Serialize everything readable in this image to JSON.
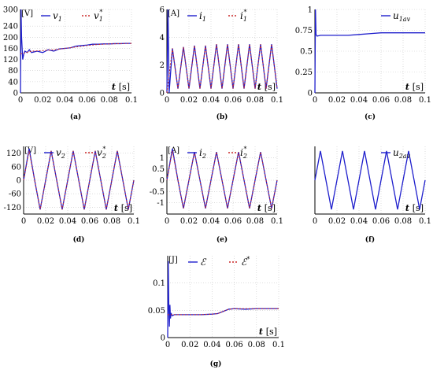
{
  "figure": {
    "colors": {
      "primary": "#1f1fcc",
      "reference": "#cc2a2a",
      "axis": "#000000",
      "grid": "#c8c8c8"
    }
  },
  "chart_data": [
    {
      "id": "a",
      "type": "line",
      "panel_label": "(a)",
      "unit_label": "[V]",
      "xlabel": "t",
      "xunit": "[s]",
      "xlim": [
        0,
        0.1
      ],
      "ylim": [
        0,
        300
      ],
      "xticks": [
        "0",
        "0.02",
        "0.04",
        "0.06",
        "0.08",
        "0.1"
      ],
      "yticks": [
        "300",
        "240",
        "200",
        "160",
        "120",
        "80",
        "40",
        "0"
      ],
      "ytick_values": [
        300,
        240,
        200,
        160,
        120,
        80,
        40,
        0
      ],
      "grid": true,
      "legend_position": "top",
      "series": [
        {
          "name": "v1",
          "label_main": "v",
          "label_sub": "1",
          "label_sup": "",
          "style": "solid",
          "x": [
            0,
            0.0005,
            0.001,
            0.002,
            0.003,
            0.004,
            0.006,
            0.008,
            0.01,
            0.015,
            0.02,
            0.025,
            0.03,
            0.035,
            0.04,
            0.045,
            0.05,
            0.055,
            0.06,
            0.065,
            0.07,
            0.075,
            0.08,
            0.085,
            0.09,
            0.095,
            0.1
          ],
          "y": [
            0,
            300,
            200,
            120,
            140,
            150,
            145,
            155,
            145,
            150,
            145,
            155,
            150,
            158,
            160,
            162,
            168,
            170,
            172,
            175,
            175,
            176,
            176,
            177,
            177,
            178,
            178
          ]
        },
        {
          "name": "v1*",
          "label_main": "v",
          "label_sub": "1",
          "label_sup": "*",
          "style": "dashed",
          "x": [
            0,
            0.01,
            0.02,
            0.03,
            0.04,
            0.05,
            0.06,
            0.07,
            0.08,
            0.09,
            0.1
          ],
          "y": [
            140,
            150,
            152,
            155,
            160,
            165,
            170,
            174,
            176,
            177,
            178
          ]
        }
      ]
    },
    {
      "id": "b",
      "type": "line",
      "panel_label": "(b)",
      "unit_label": "[A]",
      "xlabel": "t",
      "xunit": "[s]",
      "xlim": [
        0,
        0.1
      ],
      "ylim": [
        0,
        6
      ],
      "xticks": [
        "0",
        "0.02",
        "0.04",
        "0.06",
        "0.08",
        "0.1"
      ],
      "yticks": [
        "6",
        "4",
        "2",
        "0"
      ],
      "ytick_values": [
        6,
        4,
        2,
        0
      ],
      "grid": true,
      "legend_position": "top",
      "series": [
        {
          "name": "i1",
          "label_main": "i",
          "label_sub": "1",
          "label_sup": "",
          "style": "solid",
          "x": [
            0,
            0.001,
            0.002,
            0.005,
            0.01,
            0.015,
            0.02,
            0.025,
            0.03,
            0.035,
            0.04,
            0.045,
            0.05,
            0.055,
            0.06,
            0.065,
            0.07,
            0.075,
            0.08,
            0.085,
            0.09,
            0.095,
            0.1
          ],
          "y": [
            0,
            6,
            0,
            3.2,
            0.3,
            3.3,
            0.3,
            3.4,
            0.3,
            3.4,
            0.3,
            3.5,
            0.3,
            3.5,
            0.3,
            3.5,
            0.3,
            3.5,
            0.3,
            3.5,
            0.3,
            3.5,
            0.3
          ]
        },
        {
          "name": "i1*",
          "label_main": "i",
          "label_sub": "1",
          "label_sup": "*",
          "style": "dashed",
          "x": [
            0,
            0.005,
            0.01,
            0.015,
            0.02,
            0.025,
            0.03,
            0.035,
            0.04,
            0.045,
            0.05,
            0.055,
            0.06,
            0.065,
            0.07,
            0.075,
            0.08,
            0.085,
            0.09,
            0.095,
            0.1
          ],
          "y": [
            0,
            3.2,
            0.3,
            3.3,
            0.3,
            3.4,
            0.3,
            3.4,
            0.3,
            3.5,
            0.3,
            3.5,
            0.3,
            3.5,
            0.3,
            3.5,
            0.3,
            3.5,
            0.3,
            3.5,
            0.3
          ]
        }
      ]
    },
    {
      "id": "c",
      "type": "line",
      "panel_label": "(c)",
      "unit_label": "",
      "xlabel": "t",
      "xunit": "[s]",
      "xlim": [
        0,
        0.1
      ],
      "ylim": [
        0,
        1
      ],
      "xticks": [
        "0",
        "0.02",
        "0.04",
        "0.06",
        "0.08",
        "0.1"
      ],
      "yticks": [
        "1",
        "0.75",
        "0.5",
        "0.25",
        "0"
      ],
      "ytick_values": [
        1,
        0.75,
        0.5,
        0.25,
        0
      ],
      "grid": true,
      "legend_position": "top-right",
      "series": [
        {
          "name": "u1av",
          "label_main": "u",
          "label_sub": "1av",
          "label_sup": "",
          "style": "solid",
          "x": [
            0,
            0.0005,
            0.001,
            0.002,
            0.005,
            0.01,
            0.02,
            0.03,
            0.04,
            0.05,
            0.06,
            0.07,
            0.08,
            0.09,
            0.1
          ],
          "y": [
            0,
            1,
            0.7,
            0.68,
            0.69,
            0.69,
            0.69,
            0.69,
            0.7,
            0.71,
            0.72,
            0.72,
            0.72,
            0.72,
            0.72
          ]
        }
      ]
    },
    {
      "id": "d",
      "type": "line",
      "panel_label": "(d)",
      "unit_label": "[V]",
      "xlabel": "t",
      "xunit": "[s]",
      "xlim": [
        0,
        0.1
      ],
      "ylim": [
        -150,
        150
      ],
      "xticks": [
        "0",
        "0.02",
        "0.04",
        "0.06",
        "0.08",
        "0.1"
      ],
      "yticks": [
        "120",
        "60",
        "0",
        "-60",
        "-120"
      ],
      "ytick_values": [
        120,
        60,
        0,
        -60,
        -120
      ],
      "grid": true,
      "legend_position": "top",
      "series": [
        {
          "name": "v2",
          "label_main": "v",
          "label_sub": "2",
          "label_sup": "",
          "style": "solid",
          "x": [
            0,
            0.005,
            0.01,
            0.015,
            0.02,
            0.025,
            0.03,
            0.035,
            0.04,
            0.045,
            0.05,
            0.055,
            0.06,
            0.065,
            0.07,
            0.075,
            0.08,
            0.085,
            0.09,
            0.095,
            0.1
          ],
          "y": [
            0,
            140,
            0,
            -130,
            0,
            130,
            0,
            -130,
            0,
            130,
            0,
            -130,
            0,
            130,
            0,
            -130,
            0,
            130,
            0,
            -130,
            0
          ]
        },
        {
          "name": "v2*",
          "label_main": "v",
          "label_sub": "2",
          "label_sup": "*",
          "style": "dashed",
          "x": [
            0,
            0.005,
            0.01,
            0.015,
            0.02,
            0.025,
            0.03,
            0.035,
            0.04,
            0.045,
            0.05,
            0.055,
            0.06,
            0.065,
            0.07,
            0.075,
            0.08,
            0.085,
            0.09,
            0.095,
            0.1
          ],
          "y": [
            0,
            130,
            0,
            -130,
            0,
            130,
            0,
            -130,
            0,
            130,
            0,
            -130,
            0,
            130,
            0,
            -130,
            0,
            130,
            0,
            -130,
            0
          ]
        }
      ]
    },
    {
      "id": "e",
      "type": "line",
      "panel_label": "(e)",
      "unit_label": "[A]",
      "xlabel": "t",
      "xunit": "[s]",
      "xlim": [
        0,
        0.1
      ],
      "ylim": [
        -1.5,
        1.5
      ],
      "xticks": [
        "0",
        "0.02",
        "0.04",
        "0.06",
        "0.08",
        "0.1"
      ],
      "yticks": [
        "1",
        "0.5",
        "0",
        "-0.5",
        "-1"
      ],
      "ytick_values": [
        1,
        0.5,
        0,
        -0.5,
        -1
      ],
      "grid": true,
      "legend_position": "top",
      "series": [
        {
          "name": "i2",
          "label_main": "i",
          "label_sub": "2",
          "label_sup": "",
          "style": "solid",
          "x": [
            0,
            0.005,
            0.01,
            0.015,
            0.02,
            0.025,
            0.03,
            0.035,
            0.04,
            0.045,
            0.05,
            0.055,
            0.06,
            0.065,
            0.07,
            0.075,
            0.08,
            0.085,
            0.09,
            0.095,
            0.1
          ],
          "y": [
            0,
            1.4,
            0,
            -1.25,
            0,
            1.25,
            0,
            -1.25,
            0,
            1.25,
            0,
            -1.25,
            0,
            1.25,
            0,
            -1.25,
            0,
            1.25,
            0,
            -1.25,
            0
          ]
        },
        {
          "name": "i2*",
          "label_main": "i",
          "label_sub": "2",
          "label_sup": "*",
          "style": "dashed",
          "x": [
            0,
            0.005,
            0.01,
            0.015,
            0.02,
            0.025,
            0.03,
            0.035,
            0.04,
            0.045,
            0.05,
            0.055,
            0.06,
            0.065,
            0.07,
            0.075,
            0.08,
            0.085,
            0.09,
            0.095,
            0.1
          ],
          "y": [
            0,
            1.3,
            0,
            -1.25,
            0,
            1.25,
            0,
            -1.25,
            0,
            1.25,
            0,
            -1.25,
            0,
            1.25,
            0,
            -1.25,
            0,
            1.25,
            0,
            -1.25,
            0
          ]
        }
      ]
    },
    {
      "id": "f",
      "type": "line",
      "panel_label": "(f)",
      "unit_label": "",
      "xlabel": "t",
      "xunit": "[s]",
      "xlim": [
        0,
        0.1
      ],
      "ylim": [
        -1.1,
        1.1
      ],
      "xticks": [
        "0",
        "0.02",
        "0.04",
        "0.06",
        "0.08",
        "0.1"
      ],
      "yticks": [],
      "ytick_values": [],
      "grid": true,
      "legend_position": "top-right",
      "series": [
        {
          "name": "u2av",
          "label_main": "u",
          "label_sub": "2av",
          "label_sup": "",
          "style": "solid",
          "x": [
            0,
            0.005,
            0.01,
            0.015,
            0.02,
            0.025,
            0.03,
            0.035,
            0.04,
            0.045,
            0.05,
            0.055,
            0.06,
            0.065,
            0.07,
            0.075,
            0.08,
            0.085,
            0.09,
            0.095,
            0.1
          ],
          "y": [
            0,
            0.95,
            0,
            -0.95,
            0,
            0.95,
            0,
            -0.95,
            0,
            0.95,
            0,
            -0.95,
            0,
            0.95,
            0,
            -0.95,
            0,
            0.95,
            0,
            -0.95,
            0
          ]
        }
      ]
    },
    {
      "id": "g",
      "type": "line",
      "panel_label": "(g)",
      "unit_label": "[J]",
      "xlabel": "t",
      "xunit": "[s]",
      "xlim": [
        0,
        0.1
      ],
      "ylim": [
        0,
        0.15
      ],
      "xticks": [
        "0",
        "0.02",
        "0.04",
        "0.06",
        "0.08",
        "0.1"
      ],
      "yticks": [
        "0.1",
        "0.05",
        "0"
      ],
      "ytick_values": [
        0.1,
        0.05,
        0
      ],
      "grid": true,
      "legend_position": "top",
      "series": [
        {
          "name": "E",
          "label_main": "ℰ",
          "label_sub": "",
          "label_sup": "",
          "style": "solid",
          "x": [
            0,
            0.0005,
            0.001,
            0.0015,
            0.002,
            0.0025,
            0.003,
            0.004,
            0.006,
            0.01,
            0.02,
            0.03,
            0.04,
            0.045,
            0.05,
            0.055,
            0.06,
            0.07,
            0.08,
            0.09,
            0.1
          ],
          "y": [
            0,
            0.14,
            0.06,
            0.02,
            0.06,
            0.035,
            0.045,
            0.04,
            0.042,
            0.042,
            0.042,
            0.042,
            0.043,
            0.044,
            0.048,
            0.052,
            0.053,
            0.052,
            0.053,
            0.053,
            0.053
          ]
        },
        {
          "name": "E*",
          "label_main": "ℰ",
          "label_sub": "",
          "label_sup": "*",
          "style": "dashed",
          "x": [
            0,
            0.01,
            0.02,
            0.03,
            0.04,
            0.045,
            0.05,
            0.055,
            0.06,
            0.07,
            0.08,
            0.09,
            0.1
          ],
          "y": [
            0.042,
            0.042,
            0.042,
            0.042,
            0.043,
            0.044,
            0.048,
            0.052,
            0.053,
            0.053,
            0.053,
            0.053,
            0.053
          ]
        }
      ]
    }
  ]
}
